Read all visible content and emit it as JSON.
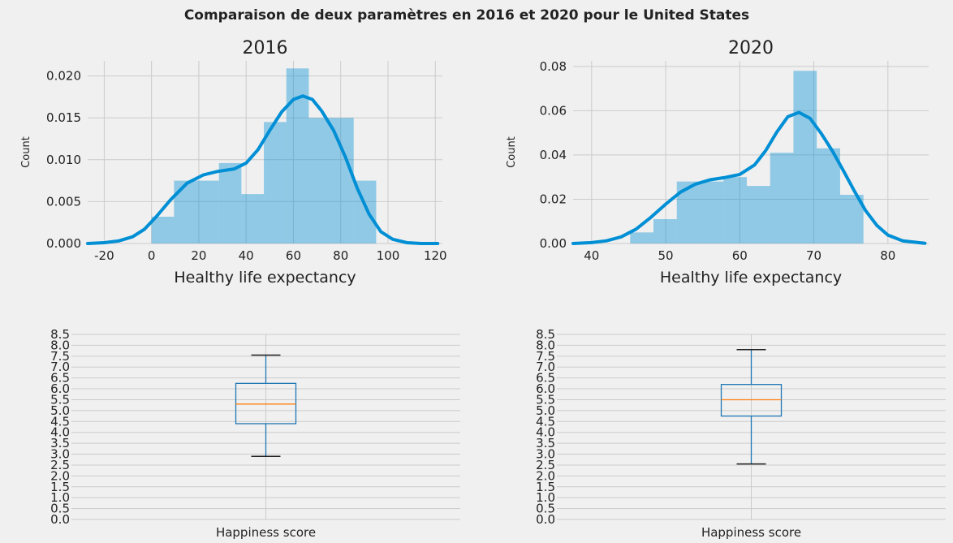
{
  "figure": {
    "suptitle": "Comparaison de deux paramètres en 2016 et 2020 pour le United States"
  },
  "chart_data": [
    {
      "type": "histogram",
      "title": "2016",
      "xlabel": "Healthy life expectancy",
      "ylabel": "Count",
      "xlim": [
        -27,
        123
      ],
      "ylim": [
        0,
        0.0218
      ],
      "xticks": [
        -20,
        0,
        20,
        40,
        60,
        80,
        100,
        120
      ],
      "yticks": [
        0.0,
        0.005,
        0.01,
        0.015,
        0.02
      ],
      "ytick_labels": [
        "0.000",
        "0.005",
        "0.010",
        "0.015",
        "0.020"
      ],
      "bins": [
        0,
        9.5,
        19,
        28.5,
        38,
        47.5,
        57,
        66.5,
        76,
        85.5,
        95
      ],
      "values": [
        0.0032,
        0.0075,
        0.0075,
        0.0096,
        0.0059,
        0.0145,
        0.0209,
        0.015,
        0.015,
        0.0075
      ],
      "kde": {
        "x": [
          -27,
          -20,
          -14,
          -8,
          -3,
          2,
          8,
          15,
          22,
          28,
          35,
          40,
          45,
          50,
          55,
          60,
          64,
          68,
          72,
          77,
          82,
          87,
          92,
          97,
          102,
          108,
          114,
          121
        ],
        "y": [
          0.0,
          0.0001,
          0.0003,
          0.0008,
          0.0017,
          0.0032,
          0.0052,
          0.0072,
          0.0082,
          0.0086,
          0.0089,
          0.0096,
          0.0112,
          0.0135,
          0.0157,
          0.0172,
          0.0176,
          0.0172,
          0.0158,
          0.0135,
          0.0103,
          0.0066,
          0.0035,
          0.0014,
          0.0005,
          0.0001,
          0.0,
          0.0
        ]
      },
      "grid": true
    },
    {
      "type": "histogram",
      "title": "2020",
      "xlabel": "Healthy life expectancy",
      "ylabel": "Count",
      "xlim": [
        37.5,
        85.5
      ],
      "ylim": [
        0,
        0.0825
      ],
      "xticks": [
        40,
        50,
        60,
        70,
        80
      ],
      "yticks": [
        0.0,
        0.02,
        0.04,
        0.06,
        0.08
      ],
      "ytick_labels": [
        "0.00",
        "0.02",
        "0.04",
        "0.06",
        "0.08"
      ],
      "bins": [
        45.2,
        48.35,
        51.5,
        54.65,
        57.8,
        60.95,
        64.1,
        67.25,
        70.4,
        73.55,
        76.7
      ],
      "values": [
        0.005,
        0.011,
        0.028,
        0.028,
        0.03,
        0.026,
        0.041,
        0.078,
        0.043,
        0.022
      ],
      "kde": {
        "x": [
          37.5,
          40,
          42,
          44,
          46,
          48,
          50,
          52,
          54,
          56,
          58,
          60,
          62,
          63.5,
          65,
          66.5,
          68,
          69.5,
          71,
          72.5,
          74,
          75.5,
          77,
          78.5,
          80,
          82,
          85
        ],
        "y": [
          0.0,
          0.0004,
          0.0012,
          0.003,
          0.0065,
          0.0118,
          0.0178,
          0.0232,
          0.0268,
          0.0288,
          0.0298,
          0.0312,
          0.0355,
          0.042,
          0.0503,
          0.0573,
          0.0592,
          0.0565,
          0.0497,
          0.0418,
          0.0328,
          0.0235,
          0.0148,
          0.0082,
          0.0038,
          0.0012,
          0.0001
        ]
      },
      "grid": true
    },
    {
      "type": "box",
      "category": "Happiness score",
      "ylim": [
        0,
        8.5
      ],
      "yticks": [
        "0.0",
        "0.5",
        "1.0",
        "1.5",
        "2.0",
        "2.5",
        "3.0",
        "3.5",
        "4.0",
        "4.5",
        "5.0",
        "5.5",
        "6.0",
        "6.5",
        "7.0",
        "7.5",
        "8.0",
        "8.5"
      ],
      "whisker_low": 2.9,
      "q1": 4.4,
      "median": 5.3,
      "q3": 6.25,
      "whisker_high": 7.55,
      "grid": true
    },
    {
      "type": "box",
      "category": "Happiness score",
      "ylim": [
        0,
        8.5
      ],
      "yticks": [
        "0.0",
        "0.5",
        "1.0",
        "1.5",
        "2.0",
        "2.5",
        "3.0",
        "3.5",
        "4.0",
        "4.5",
        "5.0",
        "5.5",
        "6.0",
        "6.5",
        "7.0",
        "7.5",
        "8.0",
        "8.5"
      ],
      "whisker_low": 2.55,
      "q1": 4.75,
      "median": 5.5,
      "q3": 6.2,
      "whisker_high": 7.8,
      "grid": true
    }
  ],
  "colors": {
    "hist_fill": "#008fd5",
    "kde_line": "#008fd5",
    "box_line": "#1f77b4",
    "median_line": "#ff7f0e",
    "grid": "#cbcbcb",
    "background": "#f0f0f0"
  }
}
